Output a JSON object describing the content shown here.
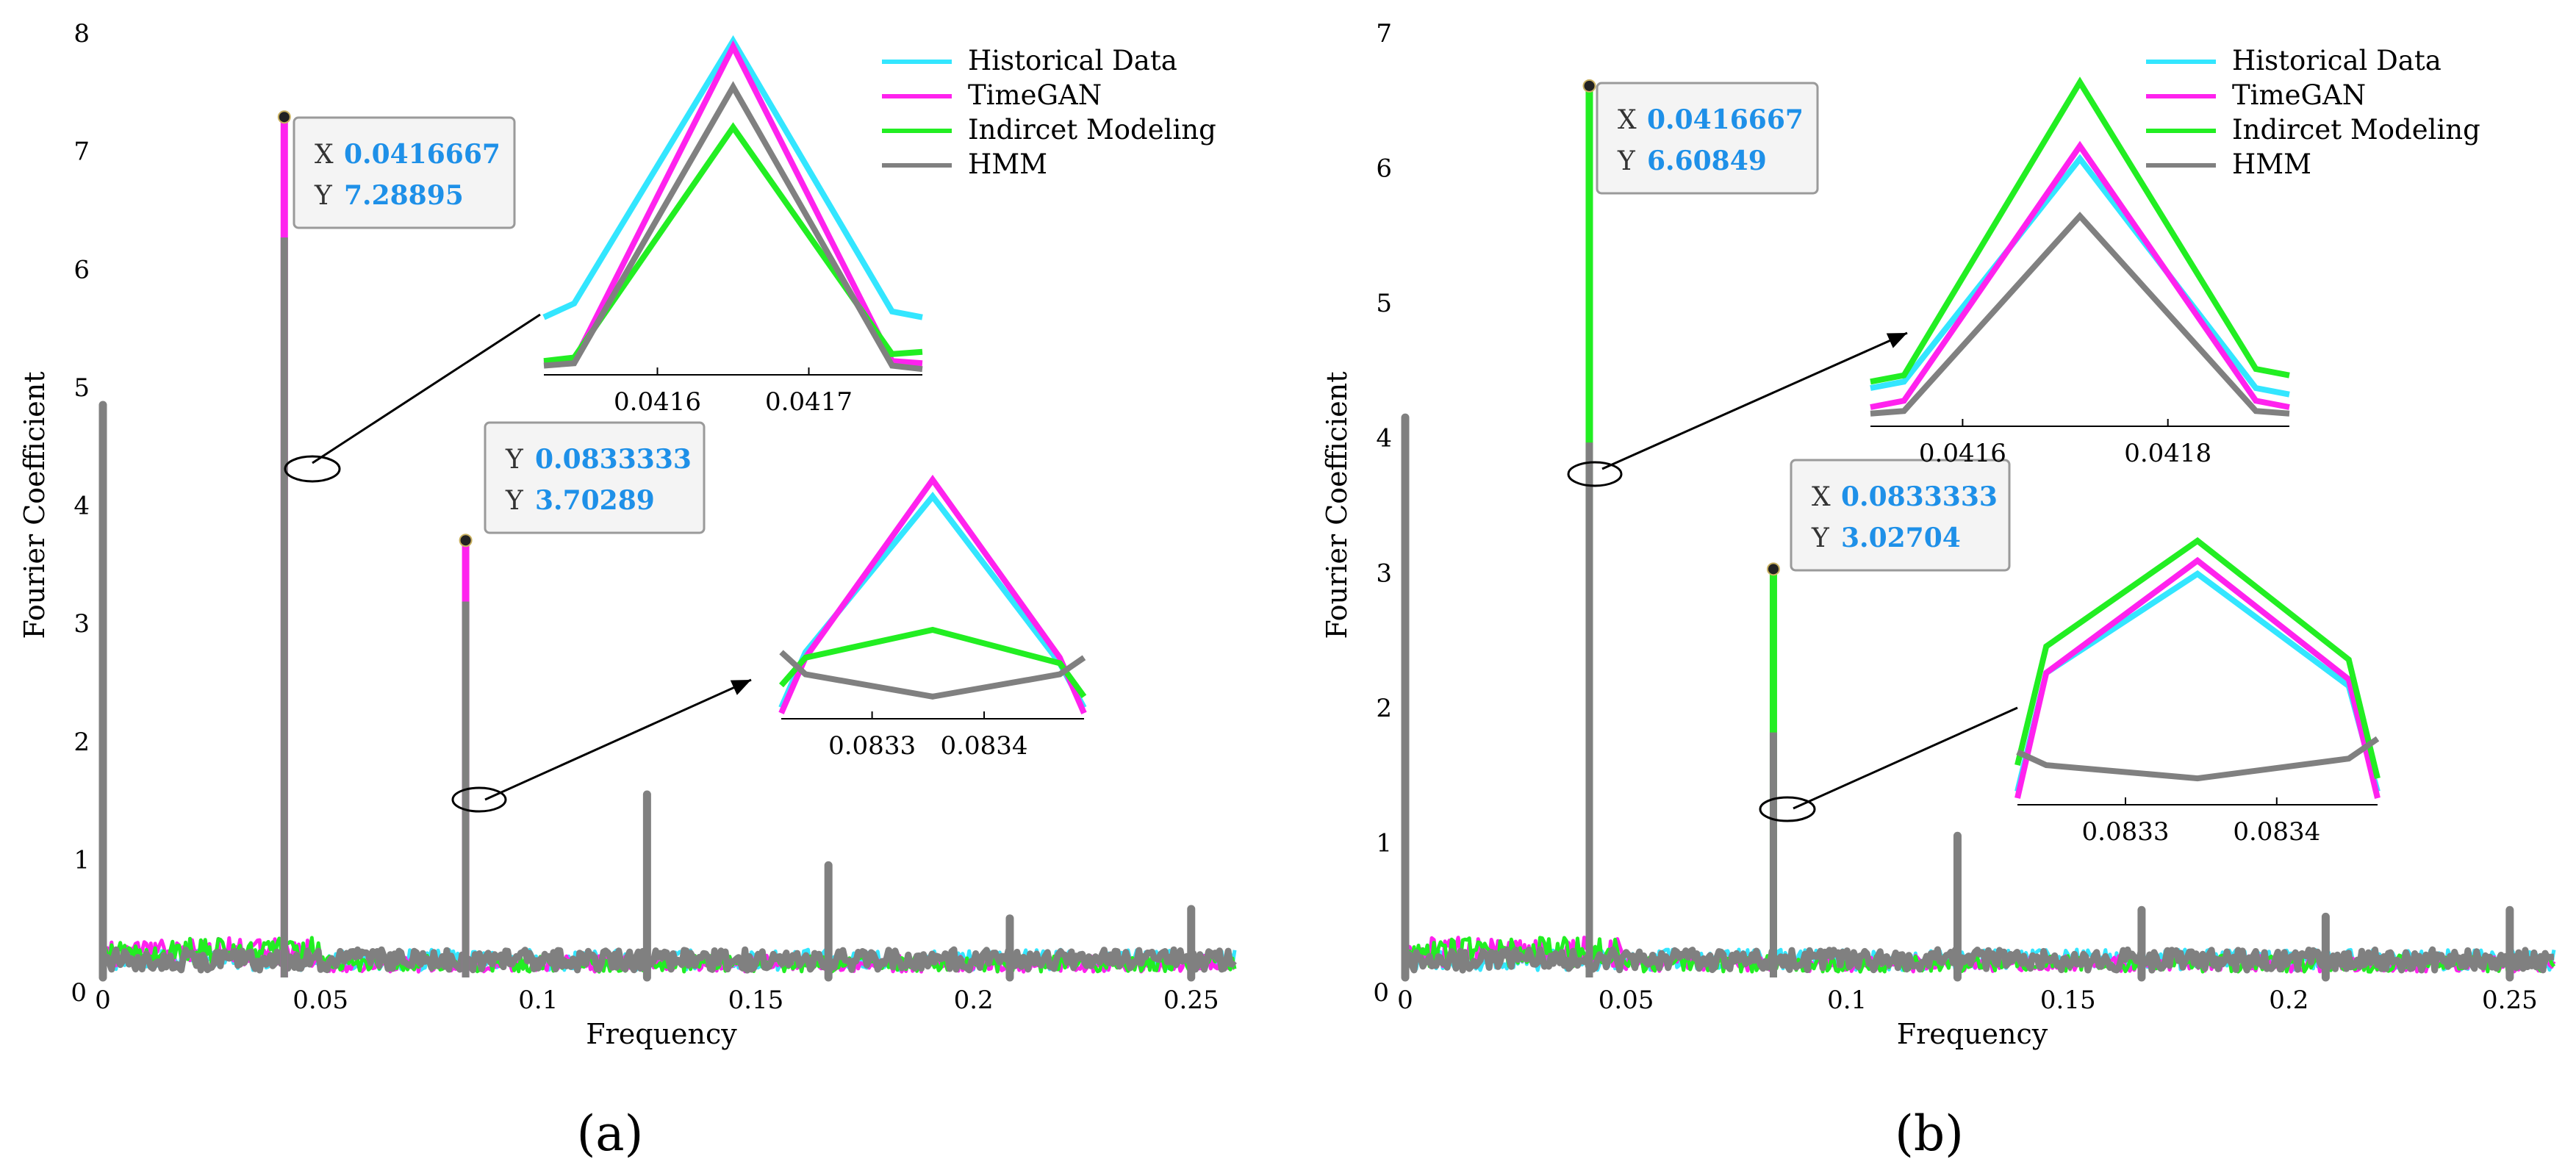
{
  "chart_data": [
    {
      "type": "line",
      "panel_label": "(a)",
      "xlabel": "Frequency",
      "ylabel": "Fourier Coefficient",
      "xlim": [
        0,
        0.26
      ],
      "ylim": [
        0,
        8
      ],
      "xticks": [
        "0",
        "0.05",
        "0.1",
        "0.15",
        "0.2",
        "0.25"
      ],
      "yticks": [
        "1",
        "2",
        "3",
        "4",
        "5",
        "6",
        "7",
        "8"
      ],
      "legend": {
        "placement": "top-right",
        "entries": [
          {
            "name": "Historical Data",
            "color": "#33e6ff"
          },
          {
            "name": "TimeGAN",
            "color": "#ff22ee"
          },
          {
            "name": "Indircet Modeling",
            "color": "#22ee22"
          },
          {
            "name": "HMM",
            "color": "#808080"
          }
        ]
      },
      "noise_level": 0.25,
      "spikes": [
        {
          "x": 0.0,
          "y": 4.85
        },
        {
          "x": 0.0416667,
          "y": 7.28895
        },
        {
          "x": 0.0833333,
          "y": 3.70289
        },
        {
          "x": 0.125,
          "y": 1.55
        },
        {
          "x": 0.1666667,
          "y": 0.95
        },
        {
          "x": 0.2083333,
          "y": 0.5
        },
        {
          "x": 0.25,
          "y": 0.58
        }
      ],
      "datatips": [
        {
          "x_label": "X",
          "x_value": "0.0416667",
          "y_label": "Y",
          "y_value": "7.28895"
        },
        {
          "x_label": "Y",
          "x_value": "0.0833333",
          "y_label": "Y",
          "y_value": "3.70289"
        }
      ],
      "insets": [
        {
          "xticks": [
            "0.0416",
            "0.0417"
          ],
          "series": [
            {
              "name": "Historical Data",
              "values": [
                5.5,
                5.62,
                7.9,
                5.55,
                5.5
              ]
            },
            {
              "name": "TimeGAN",
              "values": [
                5.1,
                5.12,
                7.85,
                5.12,
                5.1
              ]
            },
            {
              "name": "Indircet Modeling",
              "values": [
                5.12,
                5.15,
                7.15,
                5.18,
                5.2
              ]
            },
            {
              "name": "HMM",
              "values": [
                5.08,
                5.1,
                7.5,
                5.08,
                5.05
              ]
            }
          ]
        },
        {
          "xticks": [
            "0.0833",
            "0.0834"
          ],
          "series": [
            {
              "name": "Historical Data",
              "values": [
                2.3,
                2.8,
                4.2,
                2.7,
                2.3
              ]
            },
            {
              "name": "TimeGAN",
              "values": [
                2.25,
                2.75,
                4.35,
                2.75,
                2.25
              ]
            },
            {
              "name": "Indircet Modeling",
              "values": [
                2.5,
                2.75,
                3.0,
                2.7,
                2.4
              ]
            },
            {
              "name": "HMM",
              "values": [
                2.8,
                2.6,
                2.4,
                2.6,
                2.75
              ]
            }
          ]
        }
      ]
    },
    {
      "type": "line",
      "panel_label": "(b)",
      "xlabel": "Frequency",
      "ylabel": "Fourier Coefficient",
      "xlim": [
        0,
        0.26
      ],
      "ylim": [
        0,
        7
      ],
      "xticks": [
        "0",
        "0.05",
        "0.1",
        "0.15",
        "0.2",
        "0.25"
      ],
      "yticks": [
        "1",
        "2",
        "3",
        "4",
        "5",
        "6",
        "7"
      ],
      "legend": {
        "placement": "top-right",
        "entries": [
          {
            "name": "Historical Data",
            "color": "#33e6ff"
          },
          {
            "name": "TimeGAN",
            "color": "#ff22ee"
          },
          {
            "name": "Indircet Modeling",
            "color": "#22ee22"
          },
          {
            "name": "HMM",
            "color": "#808080"
          }
        ]
      },
      "noise_level": 0.22,
      "spikes": [
        {
          "x": 0.0,
          "y": 4.15
        },
        {
          "x": 0.0416667,
          "y": 6.60849
        },
        {
          "x": 0.0833333,
          "y": 3.02704
        },
        {
          "x": 0.125,
          "y": 1.05
        },
        {
          "x": 0.1666667,
          "y": 0.5
        },
        {
          "x": 0.2083333,
          "y": 0.45
        },
        {
          "x": 0.25,
          "y": 0.5
        }
      ],
      "datatips": [
        {
          "x_label": "X",
          "x_value": "0.0416667",
          "y_label": "Y",
          "y_value": "6.60849"
        },
        {
          "x_label": "X",
          "x_value": "0.0833333",
          "y_label": "Y",
          "y_value": "3.02704"
        }
      ],
      "insets": [
        {
          "xticks": [
            "0.0416",
            "0.0418"
          ],
          "series": [
            {
              "name": "Historical Data",
              "values": [
                4.3,
                4.35,
                6.1,
                4.3,
                4.25
              ]
            },
            {
              "name": "TimeGAN",
              "values": [
                4.15,
                4.2,
                6.2,
                4.2,
                4.15
              ]
            },
            {
              "name": "Indircet Modeling",
              "values": [
                4.35,
                4.4,
                6.7,
                4.45,
                4.4
              ]
            },
            {
              "name": "HMM",
              "values": [
                4.1,
                4.12,
                5.65,
                4.12,
                4.1
              ]
            }
          ]
        },
        {
          "xticks": [
            "0.0833",
            "0.0834"
          ],
          "series": [
            {
              "name": "Historical Data",
              "values": [
                1.4,
                2.3,
                3.05,
                2.2,
                1.4
              ]
            },
            {
              "name": "TimeGAN",
              "values": [
                1.35,
                2.3,
                3.15,
                2.25,
                1.35
              ]
            },
            {
              "name": "Indircet Modeling",
              "values": [
                1.6,
                2.5,
                3.3,
                2.4,
                1.5
              ]
            },
            {
              "name": "HMM",
              "values": [
                1.7,
                1.6,
                1.5,
                1.65,
                1.8
              ]
            }
          ]
        }
      ]
    }
  ]
}
